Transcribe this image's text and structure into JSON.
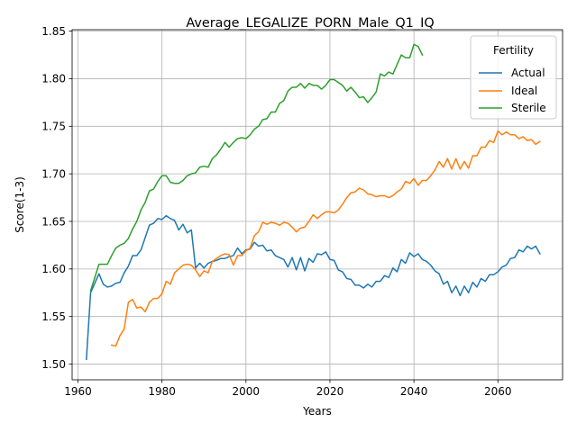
{
  "chart_data": {
    "type": "line",
    "title": "Average_LEGALIZE_PORN_Male_Q1_IQ",
    "xlabel": "Years",
    "ylabel": "Score(1-3)",
    "xlim": [
      1958.6,
      2075.4
    ],
    "ylim": [
      1.4835,
      1.8515
    ],
    "x_ticks": [
      1960,
      1980,
      2000,
      2020,
      2040,
      2060
    ],
    "y_ticks": [
      1.5,
      1.55,
      1.6,
      1.65,
      1.7,
      1.75,
      1.8,
      1.85
    ],
    "x_tick_labels": [
      "1960",
      "1980",
      "2000",
      "2020",
      "2040",
      "2060"
    ],
    "y_tick_labels": [
      "1.50",
      "1.55",
      "1.60",
      "1.65",
      "1.70",
      "1.75",
      "1.80",
      "1.85"
    ],
    "grid": true,
    "legend": {
      "title": "Fertility",
      "placement": "top-right"
    },
    "series": [
      {
        "name": "Actual",
        "color": "#1f77b4",
        "points": [
          [
            1962,
            1.505
          ],
          [
            1963,
            1.575
          ],
          [
            1964,
            1.585
          ],
          [
            1965,
            1.595
          ],
          [
            1966,
            1.584
          ],
          [
            1967,
            1.581
          ],
          [
            1968,
            1.582
          ],
          [
            1969,
            1.585
          ],
          [
            1970,
            1.586
          ],
          [
            1971,
            1.596
          ],
          [
            1972,
            1.603
          ],
          [
            1973,
            1.614
          ],
          [
            1974,
            1.614
          ],
          [
            1975,
            1.62
          ],
          [
            1976,
            1.633
          ],
          [
            1977,
            1.646
          ],
          [
            1978,
            1.648
          ],
          [
            1979,
            1.653
          ],
          [
            1980,
            1.652
          ],
          [
            1981,
            1.656
          ],
          [
            1982,
            1.653
          ],
          [
            1983,
            1.651
          ],
          [
            1984,
            1.641
          ],
          [
            1985,
            1.647
          ],
          [
            1986,
            1.638
          ],
          [
            1987,
            1.641
          ],
          [
            1988,
            1.601
          ],
          [
            1989,
            1.606
          ],
          [
            1990,
            1.601
          ],
          [
            1991,
            1.606
          ],
          [
            1992,
            1.608
          ],
          [
            1993,
            1.609
          ],
          [
            1994,
            1.611
          ],
          [
            1995,
            1.611
          ],
          [
            1996,
            1.613
          ],
          [
            1997,
            1.614
          ],
          [
            1998,
            1.622
          ],
          [
            1999,
            1.616
          ],
          [
            2000,
            1.62
          ],
          [
            2001,
            1.621
          ],
          [
            2002,
            1.628
          ],
          [
            2003,
            1.624
          ],
          [
            2004,
            1.625
          ],
          [
            2005,
            1.619
          ],
          [
            2006,
            1.62
          ],
          [
            2007,
            1.614
          ],
          [
            2008,
            1.612
          ],
          [
            2009,
            1.61
          ],
          [
            2010,
            1.602
          ],
          [
            2011,
            1.612
          ],
          [
            2012,
            1.599
          ],
          [
            2013,
            1.612
          ],
          [
            2014,
            1.598
          ],
          [
            2015,
            1.611
          ],
          [
            2016,
            1.607
          ],
          [
            2017,
            1.616
          ],
          [
            2018,
            1.615
          ],
          [
            2019,
            1.618
          ],
          [
            2020,
            1.61
          ],
          [
            2021,
            1.609
          ],
          [
            2022,
            1.599
          ],
          [
            2023,
            1.597
          ],
          [
            2024,
            1.59
          ],
          [
            2025,
            1.589
          ],
          [
            2026,
            1.583
          ],
          [
            2027,
            1.583
          ],
          [
            2028,
            1.58
          ],
          [
            2029,
            1.584
          ],
          [
            2030,
            1.581
          ],
          [
            2031,
            1.587
          ],
          [
            2032,
            1.587
          ],
          [
            2033,
            1.593
          ],
          [
            2034,
            1.591
          ],
          [
            2035,
            1.601
          ],
          [
            2036,
            1.597
          ],
          [
            2037,
            1.61
          ],
          [
            2038,
            1.606
          ],
          [
            2039,
            1.617
          ],
          [
            2040,
            1.613
          ],
          [
            2041,
            1.616
          ],
          [
            2042,
            1.61
          ],
          [
            2043,
            1.608
          ],
          [
            2044,
            1.604
          ],
          [
            2045,
            1.598
          ],
          [
            2046,
            1.595
          ],
          [
            2047,
            1.584
          ],
          [
            2048,
            1.587
          ],
          [
            2049,
            1.575
          ],
          [
            2050,
            1.582
          ],
          [
            2051,
            1.572
          ],
          [
            2052,
            1.582
          ],
          [
            2053,
            1.575
          ],
          [
            2054,
            1.586
          ],
          [
            2055,
            1.581
          ],
          [
            2056,
            1.59
          ],
          [
            2057,
            1.587
          ],
          [
            2058,
            1.594
          ],
          [
            2059,
            1.594
          ],
          [
            2060,
            1.597
          ],
          [
            2061,
            1.602
          ],
          [
            2062,
            1.604
          ],
          [
            2063,
            1.611
          ],
          [
            2064,
            1.612
          ],
          [
            2065,
            1.62
          ],
          [
            2066,
            1.618
          ],
          [
            2067,
            1.624
          ],
          [
            2068,
            1.621
          ],
          [
            2069,
            1.624
          ],
          [
            2070,
            1.616
          ]
        ]
      },
      {
        "name": "Ideal",
        "color": "#ff7f0e",
        "points": [
          [
            1968,
            1.52
          ],
          [
            1969,
            1.519
          ],
          [
            1970,
            1.53
          ],
          [
            1971,
            1.537
          ],
          [
            1972,
            1.565
          ],
          [
            1973,
            1.568
          ],
          [
            1974,
            1.559
          ],
          [
            1975,
            1.56
          ],
          [
            1976,
            1.555
          ],
          [
            1977,
            1.565
          ],
          [
            1978,
            1.569
          ],
          [
            1979,
            1.569
          ],
          [
            1980,
            1.574
          ],
          [
            1981,
            1.587
          ],
          [
            1982,
            1.584
          ],
          [
            1983,
            1.596
          ],
          [
            1984,
            1.6
          ],
          [
            1985,
            1.604
          ],
          [
            1986,
            1.605
          ],
          [
            1987,
            1.604
          ],
          [
            1988,
            1.599
          ],
          [
            1989,
            1.592
          ],
          [
            1990,
            1.598
          ],
          [
            1991,
            1.596
          ],
          [
            1992,
            1.608
          ],
          [
            1993,
            1.611
          ],
          [
            1994,
            1.614
          ],
          [
            1995,
            1.616
          ],
          [
            1996,
            1.615
          ],
          [
            1997,
            1.604
          ],
          [
            1998,
            1.614
          ],
          [
            1999,
            1.614
          ],
          [
            2000,
            1.619
          ],
          [
            2001,
            1.622
          ],
          [
            2002,
            1.635
          ],
          [
            2003,
            1.639
          ],
          [
            2004,
            1.649
          ],
          [
            2005,
            1.647
          ],
          [
            2006,
            1.649
          ],
          [
            2007,
            1.648
          ],
          [
            2008,
            1.646
          ],
          [
            2009,
            1.649
          ],
          [
            2010,
            1.648
          ],
          [
            2011,
            1.644
          ],
          [
            2012,
            1.639
          ],
          [
            2013,
            1.643
          ],
          [
            2014,
            1.644
          ],
          [
            2015,
            1.65
          ],
          [
            2016,
            1.657
          ],
          [
            2017,
            1.653
          ],
          [
            2018,
            1.657
          ],
          [
            2019,
            1.66
          ],
          [
            2020,
            1.66
          ],
          [
            2021,
            1.659
          ],
          [
            2022,
            1.662
          ],
          [
            2023,
            1.668
          ],
          [
            2024,
            1.675
          ],
          [
            2025,
            1.68
          ],
          [
            2026,
            1.681
          ],
          [
            2027,
            1.685
          ],
          [
            2028,
            1.683
          ],
          [
            2029,
            1.679
          ],
          [
            2030,
            1.678
          ],
          [
            2031,
            1.676
          ],
          [
            2032,
            1.677
          ],
          [
            2033,
            1.677
          ],
          [
            2034,
            1.675
          ],
          [
            2035,
            1.677
          ],
          [
            2036,
            1.681
          ],
          [
            2037,
            1.684
          ],
          [
            2038,
            1.692
          ],
          [
            2039,
            1.69
          ],
          [
            2040,
            1.695
          ],
          [
            2041,
            1.688
          ],
          [
            2042,
            1.693
          ],
          [
            2043,
            1.693
          ],
          [
            2044,
            1.698
          ],
          [
            2045,
            1.704
          ],
          [
            2046,
            1.713
          ],
          [
            2047,
            1.707
          ],
          [
            2048,
            1.716
          ],
          [
            2049,
            1.705
          ],
          [
            2050,
            1.716
          ],
          [
            2051,
            1.705
          ],
          [
            2052,
            1.713
          ],
          [
            2053,
            1.706
          ],
          [
            2054,
            1.719
          ],
          [
            2055,
            1.719
          ],
          [
            2056,
            1.728
          ],
          [
            2057,
            1.728
          ],
          [
            2058,
            1.735
          ],
          [
            2059,
            1.733
          ],
          [
            2060,
            1.745
          ],
          [
            2061,
            1.741
          ],
          [
            2062,
            1.744
          ],
          [
            2063,
            1.741
          ],
          [
            2064,
            1.741
          ],
          [
            2065,
            1.737
          ],
          [
            2066,
            1.739
          ],
          [
            2067,
            1.735
          ],
          [
            2068,
            1.736
          ],
          [
            2069,
            1.731
          ],
          [
            2070,
            1.734
          ]
        ]
      },
      {
        "name": "Sterile",
        "color": "#2ca02c",
        "points": [
          [
            1963,
            1.577
          ],
          [
            1964,
            1.591
          ],
          [
            1965,
            1.605
          ],
          [
            1966,
            1.605
          ],
          [
            1967,
            1.605
          ],
          [
            1968,
            1.614
          ],
          [
            1969,
            1.622
          ],
          [
            1970,
            1.625
          ],
          [
            1971,
            1.627
          ],
          [
            1972,
            1.632
          ],
          [
            1973,
            1.642
          ],
          [
            1974,
            1.65
          ],
          [
            1975,
            1.662
          ],
          [
            1976,
            1.67
          ],
          [
            1977,
            1.682
          ],
          [
            1978,
            1.684
          ],
          [
            1979,
            1.692
          ],
          [
            1980,
            1.698
          ],
          [
            1981,
            1.698
          ],
          [
            1982,
            1.691
          ],
          [
            1983,
            1.69
          ],
          [
            1984,
            1.69
          ],
          [
            1985,
            1.693
          ],
          [
            1986,
            1.698
          ],
          [
            1987,
            1.7
          ],
          [
            1988,
            1.701
          ],
          [
            1989,
            1.707
          ],
          [
            1990,
            1.708
          ],
          [
            1991,
            1.707
          ],
          [
            1992,
            1.716
          ],
          [
            1993,
            1.72
          ],
          [
            1994,
            1.726
          ],
          [
            1995,
            1.733
          ],
          [
            1996,
            1.728
          ],
          [
            1997,
            1.733
          ],
          [
            1998,
            1.737
          ],
          [
            1999,
            1.738
          ],
          [
            2000,
            1.737
          ],
          [
            2001,
            1.741
          ],
          [
            2002,
            1.747
          ],
          [
            2003,
            1.75
          ],
          [
            2004,
            1.757
          ],
          [
            2005,
            1.758
          ],
          [
            2006,
            1.765
          ],
          [
            2007,
            1.765
          ],
          [
            2008,
            1.774
          ],
          [
            2009,
            1.777
          ],
          [
            2010,
            1.787
          ],
          [
            2011,
            1.791
          ],
          [
            2012,
            1.791
          ],
          [
            2013,
            1.795
          ],
          [
            2014,
            1.79
          ],
          [
            2015,
            1.795
          ],
          [
            2016,
            1.793
          ],
          [
            2017,
            1.793
          ],
          [
            2018,
            1.789
          ],
          [
            2019,
            1.793
          ],
          [
            2020,
            1.799
          ],
          [
            2021,
            1.799
          ],
          [
            2022,
            1.796
          ],
          [
            2023,
            1.793
          ],
          [
            2024,
            1.787
          ],
          [
            2025,
            1.791
          ],
          [
            2026,
            1.786
          ],
          [
            2027,
            1.78
          ],
          [
            2028,
            1.781
          ],
          [
            2029,
            1.775
          ],
          [
            2030,
            1.78
          ],
          [
            2031,
            1.786
          ],
          [
            2032,
            1.805
          ],
          [
            2033,
            1.803
          ],
          [
            2034,
            1.807
          ],
          [
            2035,
            1.805
          ],
          [
            2036,
            1.815
          ],
          [
            2037,
            1.825
          ],
          [
            2038,
            1.822
          ],
          [
            2039,
            1.822
          ],
          [
            2040,
            1.836
          ],
          [
            2041,
            1.834
          ],
          [
            2042,
            1.825
          ]
        ]
      }
    ]
  }
}
